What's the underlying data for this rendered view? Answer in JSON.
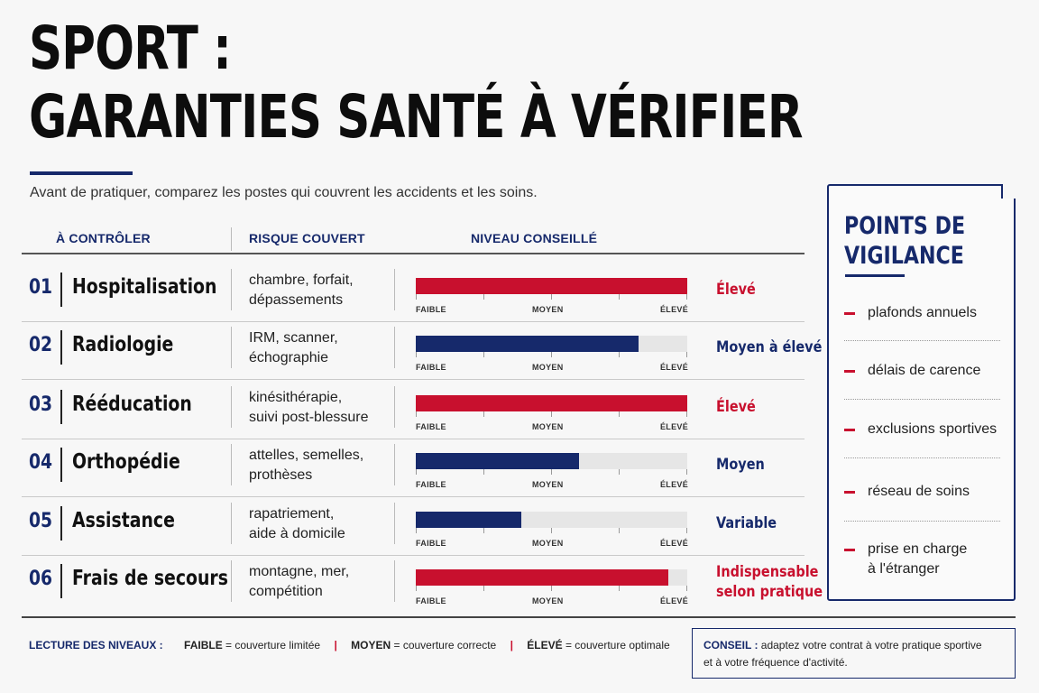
{
  "title": {
    "line1": "SPORT :",
    "line2": "GARANTIES SANTÉ À VÉRIFIER"
  },
  "subtitle": "Avant de pratiquer, comparez les postes qui couvrent les accidents et les soins.",
  "columns": {
    "check": "À CONTRÔLER",
    "risk": "RISQUE COUVERT",
    "level": "NIVEAU CONSEILLÉ"
  },
  "scale": {
    "low": "FAIBLE",
    "mid": "MOYEN",
    "high": "ÉLEVÉ"
  },
  "colors": {
    "navy": "#16296b",
    "red": "#c8102e",
    "track": "#e6e6e6"
  },
  "rows": [
    {
      "num": "01",
      "name": "Hospitalisation",
      "risk1": "chambre, forfait,",
      "risk2": "dépassements",
      "level1": "Élevé",
      "level2": "",
      "fill_fraction": 1.0,
      "color": "red"
    },
    {
      "num": "02",
      "name": "Radiologie",
      "risk1": "IRM, scanner,",
      "risk2": "échographie",
      "level1": "Moyen à élevé",
      "level2": "",
      "fill_fraction": 0.82,
      "color": "navy"
    },
    {
      "num": "03",
      "name": "Rééducation",
      "risk1": "kinésithérapie,",
      "risk2": "suivi post-blessure",
      "level1": "Élevé",
      "level2": "",
      "fill_fraction": 1.0,
      "color": "red"
    },
    {
      "num": "04",
      "name": "Orthopédie",
      "risk1": "attelles, semelles,",
      "risk2": "prothèses",
      "level1": "Moyen",
      "level2": "",
      "fill_fraction": 0.6,
      "color": "navy"
    },
    {
      "num": "05",
      "name": "Assistance",
      "risk1": "rapatriement,",
      "risk2": "aide à domicile",
      "level1": "Variable",
      "level2": "",
      "fill_fraction": 0.39,
      "color": "navy"
    },
    {
      "num": "06",
      "name": "Frais de secours",
      "risk1": "montagne, mer,",
      "risk2": "compétition",
      "level1": "Indispensable",
      "level2": "selon pratique",
      "fill_fraction": 0.93,
      "color": "red"
    }
  ],
  "vigilance": {
    "title1": "POINTS DE",
    "title2": "VIGILANCE",
    "items": [
      {
        "line1": "plafonds annuels",
        "line2": ""
      },
      {
        "line1": "délais de carence",
        "line2": ""
      },
      {
        "line1": "exclusions sportives",
        "line2": ""
      },
      {
        "line1": "réseau de soins",
        "line2": ""
      },
      {
        "line1": "prise en charge",
        "line2": "à l'étranger"
      }
    ]
  },
  "legend": {
    "title": "LECTURE DES NIVEAUX :",
    "low_term": "FAIBLE",
    "low_desc": " = couverture limitée",
    "mid_term": "MOYEN",
    "mid_desc": " = couverture correcte",
    "high_term": "ÉLEVÉ",
    "high_desc": " = couverture optimale"
  },
  "conseil": {
    "label": "CONSEIL :",
    "text1": " adaptez votre contrat à votre pratique sportive",
    "text2": "et à votre fréquence d'activité."
  }
}
